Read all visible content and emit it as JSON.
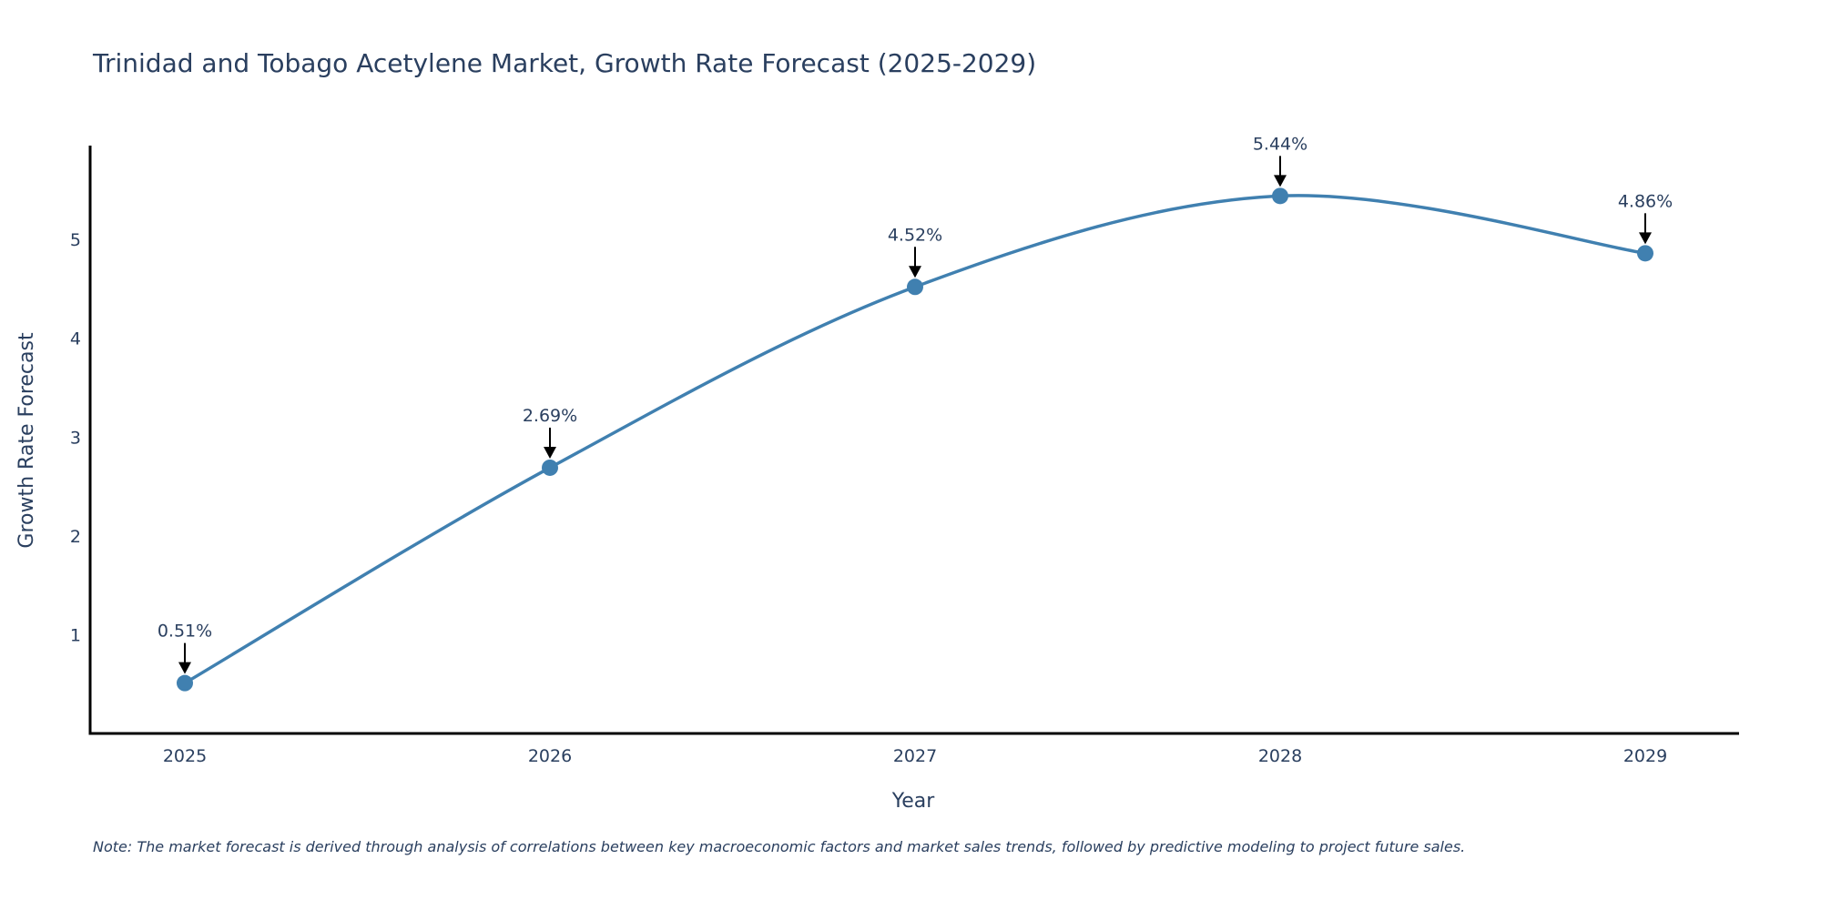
{
  "chart_data": {
    "type": "line",
    "title": "Trinidad and Tobago Acetylene Market, Growth Rate Forecast (2025-2029)",
    "xlabel": "Year",
    "ylabel": "Growth Rate Forecast",
    "x": [
      "2025",
      "2026",
      "2027",
      "2028",
      "2029"
    ],
    "series": [
      {
        "name": "Growth Rate Forecast",
        "values": [
          0.51,
          2.69,
          4.52,
          5.44,
          4.86
        ],
        "labels": [
          "0.51%",
          "2.69%",
          "4.52%",
          "5.44%",
          "4.86%"
        ],
        "color": "#4080b0"
      }
    ],
    "yticks": [
      1,
      2,
      3,
      4,
      5
    ],
    "ylim": [
      0,
      5.95
    ],
    "line_shape": "spline",
    "grid": false,
    "note": "Note: The market forecast is derived through analysis of correlations between key macroeconomic factors and market sales trends, followed by predictive modeling to project future sales."
  }
}
